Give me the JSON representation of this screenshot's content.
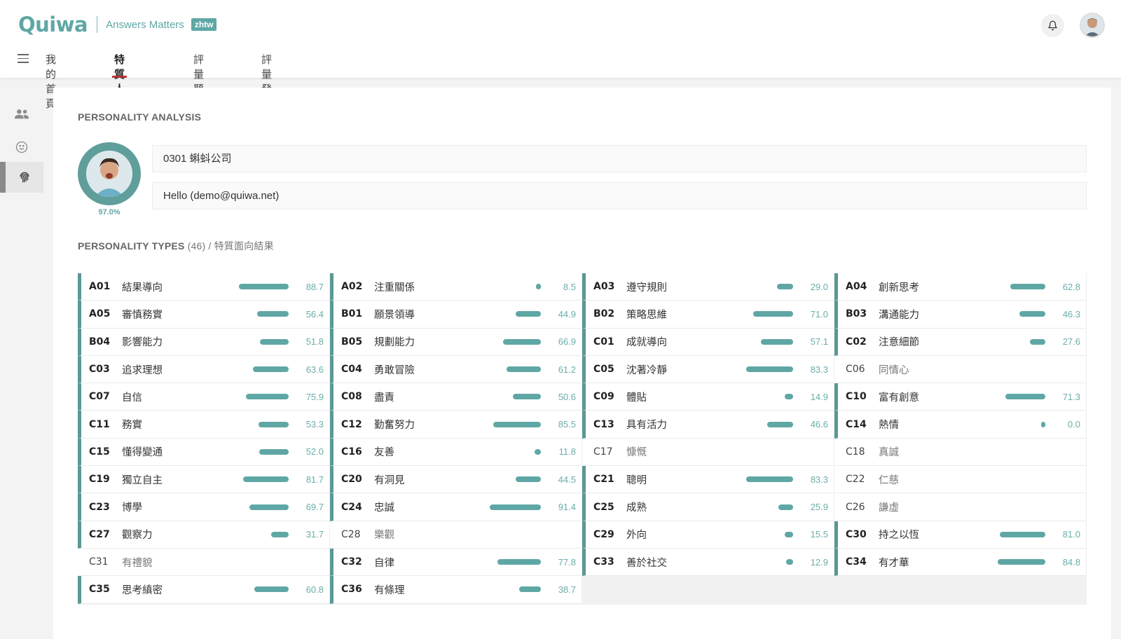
{
  "header": {
    "logo": "Quiwa",
    "tagline": "Answers Matters",
    "lang_badge": "zhtw"
  },
  "nav": {
    "tabs": [
      {
        "label": "我的首頁",
        "active": false
      },
      {
        "label": "特質人才庫",
        "active": true
      },
      {
        "label": "評量題庫",
        "active": false
      },
      {
        "label": "評量發佈",
        "active": false
      }
    ]
  },
  "sidebar": {
    "items": [
      {
        "icon": "users-icon",
        "selected": false
      },
      {
        "icon": "smiley-icon",
        "selected": false
      },
      {
        "icon": "fingerprint-icon",
        "selected": true
      }
    ]
  },
  "main": {
    "section_title": "PERSONALITY ANALYSIS",
    "profile_percent": "97.0%",
    "company_field": "0301 蝌蚪公司",
    "user_field": "Hello (demo@quiwa.net)",
    "types_title": "PERSONALITY TYPES",
    "types_count": "(46)",
    "types_subtitle": " / 特質面向結果"
  },
  "colors": {
    "accent": "#5fa7a5",
    "cell_border": "#5a9896",
    "active_tab_underline": "#b83232"
  },
  "personality_types": [
    {
      "code": "A01",
      "name": "結果導向",
      "value": "88.7"
    },
    {
      "code": "A02",
      "name": "注重關係",
      "value": "8.5"
    },
    {
      "code": "A03",
      "name": "遵守規則",
      "value": "29.0"
    },
    {
      "code": "A04",
      "name": "創新思考",
      "value": "62.8"
    },
    {
      "code": "A05",
      "name": "審慎務實",
      "value": "56.4"
    },
    {
      "code": "B01",
      "name": "願景領導",
      "value": "44.9"
    },
    {
      "code": "B02",
      "name": "策略思維",
      "value": "71.0"
    },
    {
      "code": "B03",
      "name": "溝通能力",
      "value": "46.3"
    },
    {
      "code": "B04",
      "name": "影響能力",
      "value": "51.8"
    },
    {
      "code": "B05",
      "name": "規劃能力",
      "value": "66.9"
    },
    {
      "code": "C01",
      "name": "成就導向",
      "value": "57.1"
    },
    {
      "code": "C02",
      "name": "注意細節",
      "value": "27.6"
    },
    {
      "code": "C03",
      "name": "追求理想",
      "value": "63.6"
    },
    {
      "code": "C04",
      "name": "勇敢冒險",
      "value": "61.2"
    },
    {
      "code": "C05",
      "name": "沈著冷靜",
      "value": "83.3"
    },
    {
      "code": "C06",
      "name": "同情心",
      "value": null
    },
    {
      "code": "C07",
      "name": "自信",
      "value": "75.9"
    },
    {
      "code": "C08",
      "name": "盡責",
      "value": "50.6"
    },
    {
      "code": "C09",
      "name": "體貼",
      "value": "14.9"
    },
    {
      "code": "C10",
      "name": "富有創意",
      "value": "71.3"
    },
    {
      "code": "C11",
      "name": "務實",
      "value": "53.3"
    },
    {
      "code": "C12",
      "name": "勤奮努力",
      "value": "85.5"
    },
    {
      "code": "C13",
      "name": "具有活力",
      "value": "46.6"
    },
    {
      "code": "C14",
      "name": "熱情",
      "value": "0.0"
    },
    {
      "code": "C15",
      "name": "懂得變通",
      "value": "52.0"
    },
    {
      "code": "C16",
      "name": "友善",
      "value": "11.8"
    },
    {
      "code": "C17",
      "name": "慷慨",
      "value": null
    },
    {
      "code": "C18",
      "name": "真誠",
      "value": null
    },
    {
      "code": "C19",
      "name": "獨立自主",
      "value": "81.7"
    },
    {
      "code": "C20",
      "name": "有洞見",
      "value": "44.5"
    },
    {
      "code": "C21",
      "name": "聰明",
      "value": "83.3"
    },
    {
      "code": "C22",
      "name": "仁慈",
      "value": null
    },
    {
      "code": "C23",
      "name": "博學",
      "value": "69.7"
    },
    {
      "code": "C24",
      "name": "忠誠",
      "value": "91.4"
    },
    {
      "code": "C25",
      "name": "成熟",
      "value": "25.9"
    },
    {
      "code": "C26",
      "name": "謙虛",
      "value": null
    },
    {
      "code": "C27",
      "name": "觀察力",
      "value": "31.7"
    },
    {
      "code": "C28",
      "name": "樂觀",
      "value": null
    },
    {
      "code": "C29",
      "name": "外向",
      "value": "15.5"
    },
    {
      "code": "C30",
      "name": "持之以恆",
      "value": "81.0"
    },
    {
      "code": "C31",
      "name": "有禮貌",
      "value": null
    },
    {
      "code": "C32",
      "name": "自律",
      "value": "77.8"
    },
    {
      "code": "C33",
      "name": "善於社交",
      "value": "12.9"
    },
    {
      "code": "C34",
      "name": "有才華",
      "value": "84.8"
    },
    {
      "code": "C35",
      "name": "思考縝密",
      "value": "60.8"
    },
    {
      "code": "C36",
      "name": "有條理",
      "value": "38.7"
    }
  ]
}
